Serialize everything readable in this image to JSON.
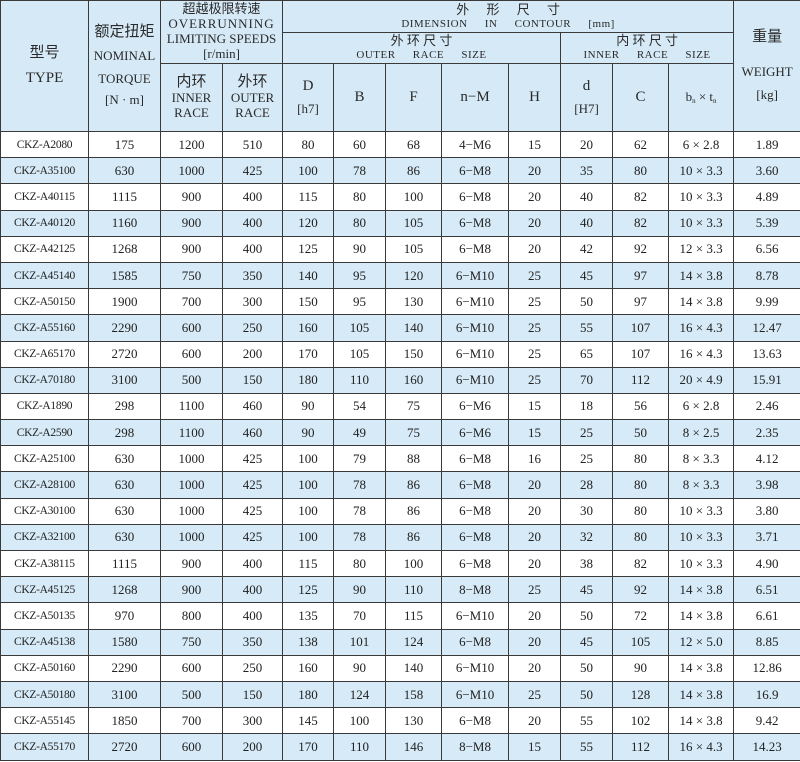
{
  "header": {
    "type_cn": "型号",
    "type_en": "TYPE",
    "torque_cn": "额定扭矩",
    "torque_en1": "NOMINAL",
    "torque_en2": "TORQUE",
    "torque_unit": "[N · m]",
    "speed_cn": "超越极限转速",
    "speed_en1": "OVERRUNNING",
    "speed_en2": "LIMITING SPEEDS",
    "speed_unit": "[r/min]",
    "inner_cn": "内环",
    "inner_en1": "INNER",
    "inner_en2": "RACE",
    "outer_cn": "外环",
    "outer_en1": "OUTER",
    "outer_en2": "RACE",
    "dim_cn": "外 形 尺 寸",
    "dim_en": "DIMENSION IN CONTOUR [mm]",
    "outer_size_cn": "外 环 尺 寸",
    "outer_size_en": "OUTER RACE SIZE",
    "inner_size_cn": "内 环 尺 寸",
    "inner_size_en": "INNER RACE SIZE",
    "D": "D",
    "D_tol": "[h7]",
    "B": "B",
    "F": "F",
    "nM": "n−M",
    "H": "H",
    "d": "d",
    "d_tol": "[H7]",
    "C": "C",
    "bn_b": "b",
    "bn_sub1": "n",
    "bn_x": " × t",
    "bn_sub2": "n",
    "weight_cn": "重量",
    "weight_en": "WEIGHT",
    "weight_unit": "[kg]"
  },
  "rows": [
    [
      "CKZ-A2080",
      "175",
      "1200",
      "510",
      "80",
      "60",
      "68",
      "4−M6",
      "15",
      "20",
      "62",
      "6 × 2.8",
      "1.89"
    ],
    [
      "CKZ-A35100",
      "630",
      "1000",
      "425",
      "100",
      "78",
      "86",
      "6−M8",
      "20",
      "35",
      "80",
      "10 × 3.3",
      "3.60"
    ],
    [
      "CKZ-A40115",
      "1115",
      "900",
      "400",
      "115",
      "80",
      "100",
      "6−M8",
      "20",
      "40",
      "82",
      "10 × 3.3",
      "4.89"
    ],
    [
      "CKZ-A40120",
      "1160",
      "900",
      "400",
      "120",
      "80",
      "105",
      "6−M8",
      "20",
      "40",
      "82",
      "10 × 3.3",
      "5.39"
    ],
    [
      "CKZ-A42125",
      "1268",
      "900",
      "400",
      "125",
      "90",
      "105",
      "6−M8",
      "20",
      "42",
      "92",
      "12 × 3.3",
      "6.56"
    ],
    [
      "CKZ-A45140",
      "1585",
      "750",
      "350",
      "140",
      "95",
      "120",
      "6−M10",
      "25",
      "45",
      "97",
      "14 × 3.8",
      "8.78"
    ],
    [
      "CKZ-A50150",
      "1900",
      "700",
      "300",
      "150",
      "95",
      "130",
      "6−M10",
      "25",
      "50",
      "97",
      "14 × 3.8",
      "9.99"
    ],
    [
      "CKZ-A55160",
      "2290",
      "600",
      "250",
      "160",
      "105",
      "140",
      "6−M10",
      "25",
      "55",
      "107",
      "16 × 4.3",
      "12.47"
    ],
    [
      "CKZ-A65170",
      "2720",
      "600",
      "200",
      "170",
      "105",
      "150",
      "6−M10",
      "25",
      "65",
      "107",
      "16 × 4.3",
      "13.63"
    ],
    [
      "CKZ-A70180",
      "3100",
      "500",
      "150",
      "180",
      "110",
      "160",
      "6−M10",
      "25",
      "70",
      "112",
      "20 × 4.9",
      "15.91"
    ],
    [
      "CKZ-A1890",
      "298",
      "1100",
      "460",
      "90",
      "54",
      "75",
      "6−M6",
      "15",
      "18",
      "56",
      "6 × 2.8",
      "2.46"
    ],
    [
      "CKZ-A2590",
      "298",
      "1100",
      "460",
      "90",
      "49",
      "75",
      "6−M6",
      "15",
      "25",
      "50",
      "8 × 2.5",
      "2.35"
    ],
    [
      "CKZ-A25100",
      "630",
      "1000",
      "425",
      "100",
      "79",
      "88",
      "6−M8",
      "16",
      "25",
      "80",
      "8 × 3.3",
      "4.12"
    ],
    [
      "CKZ-A28100",
      "630",
      "1000",
      "425",
      "100",
      "78",
      "86",
      "6−M8",
      "20",
      "28",
      "80",
      "8 × 3.3",
      "3.98"
    ],
    [
      "CKZ-A30100",
      "630",
      "1000",
      "425",
      "100",
      "78",
      "86",
      "6−M8",
      "20",
      "30",
      "80",
      "10 × 3.3",
      "3.80"
    ],
    [
      "CKZ-A32100",
      "630",
      "1000",
      "425",
      "100",
      "78",
      "86",
      "6−M8",
      "20",
      "32",
      "80",
      "10 × 3.3",
      "3.71"
    ],
    [
      "CKZ-A38115",
      "1115",
      "900",
      "400",
      "115",
      "80",
      "100",
      "6−M8",
      "20",
      "38",
      "82",
      "10 × 3.3",
      "4.90"
    ],
    [
      "CKZ-A45125",
      "1268",
      "900",
      "400",
      "125",
      "90",
      "110",
      "8−M8",
      "25",
      "45",
      "92",
      "14 × 3.8",
      "6.51"
    ],
    [
      "CKZ-A50135",
      "970",
      "800",
      "400",
      "135",
      "70",
      "115",
      "6−M10",
      "20",
      "50",
      "72",
      "14 × 3.8",
      "6.61"
    ],
    [
      "CKZ-A45138",
      "1580",
      "750",
      "350",
      "138",
      "101",
      "124",
      "6−M8",
      "20",
      "45",
      "105",
      "12 × 5.0",
      "8.85"
    ],
    [
      "CKZ-A50160",
      "2290",
      "600",
      "250",
      "160",
      "90",
      "140",
      "6−M10",
      "20",
      "50",
      "90",
      "14 × 3.8",
      "12.86"
    ],
    [
      "CKZ-A50180",
      "3100",
      "500",
      "150",
      "180",
      "124",
      "158",
      "6−M10",
      "25",
      "50",
      "128",
      "14 × 3.8",
      "16.9"
    ],
    [
      "CKZ-A55145",
      "1850",
      "700",
      "300",
      "145",
      "100",
      "130",
      "6−M8",
      "20",
      "55",
      "102",
      "14 × 3.8",
      "9.42"
    ],
    [
      "CKZ-A55170",
      "2720",
      "600",
      "200",
      "170",
      "110",
      "146",
      "8−M8",
      "15",
      "55",
      "112",
      "16 × 4.3",
      "14.23"
    ]
  ]
}
